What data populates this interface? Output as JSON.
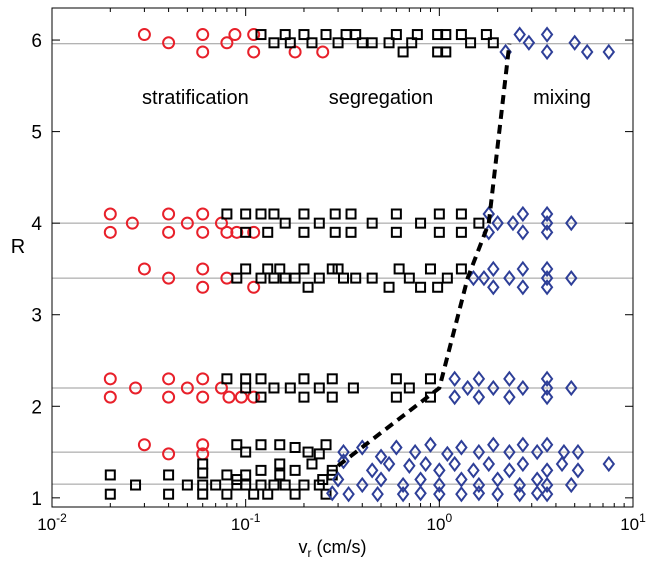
{
  "chart_data": {
    "type": "scatter",
    "xscale": "log",
    "xlim": [
      0.01,
      10
    ],
    "ylim": [
      0.9,
      6.35
    ],
    "xlabel": "v_r (cm/s)",
    "xlabel_main": "v",
    "xlabel_sub": "r",
    "xlabel_rest": " (cm/s)",
    "ylabel": "R",
    "xticks": [
      {
        "value": 0.01,
        "base": "10",
        "exp": "-2"
      },
      {
        "value": 0.1,
        "base": "10",
        "exp": "-1"
      },
      {
        "value": 1,
        "base": "10",
        "exp": "0"
      },
      {
        "value": 10,
        "base": "10",
        "exp": "1"
      }
    ],
    "yticks": [
      {
        "value": 1,
        "label": "1"
      },
      {
        "value": 2,
        "label": "2"
      },
      {
        "value": 3,
        "label": "3"
      },
      {
        "value": 4,
        "label": "4"
      },
      {
        "value": 5,
        "label": "5"
      },
      {
        "value": 6,
        "label": "6"
      }
    ],
    "reference_lines": [
      1.15,
      1.5,
      2.2,
      3.4,
      4.0,
      5.96
    ],
    "regions": [
      {
        "label": "stratification",
        "x": 0.055,
        "y": 5.3
      },
      {
        "label": "segregation",
        "x": 0.5,
        "y": 5.3
      },
      {
        "label": "mixing",
        "x": 4.3,
        "y": 5.3
      }
    ],
    "boundary": {
      "style": "dashed",
      "x": [
        0.3,
        1.0,
        1.4,
        1.8,
        2.3
      ],
      "y": [
        1.35,
        2.2,
        3.4,
        4.0,
        5.96
      ]
    },
    "colors": {
      "stratification": "#e8202a",
      "segregation": "#000000",
      "mixing": "#2e3f98"
    },
    "series": [
      {
        "marker": "circle",
        "color": "#e8202a",
        "points": [
          [
            0.03,
            6.06
          ],
          [
            0.04,
            5.97
          ],
          [
            0.06,
            6.06
          ],
          [
            0.06,
            5.87
          ],
          [
            0.08,
            5.97
          ],
          [
            0.088,
            6.06
          ],
          [
            0.11,
            6.06
          ],
          [
            0.11,
            5.87
          ],
          [
            0.18,
            5.87
          ],
          [
            0.25,
            5.87
          ],
          [
            0.02,
            4.1
          ],
          [
            0.02,
            3.9
          ],
          [
            0.026,
            4.0
          ],
          [
            0.04,
            4.1
          ],
          [
            0.04,
            3.9
          ],
          [
            0.05,
            4.0
          ],
          [
            0.06,
            4.1
          ],
          [
            0.06,
            3.9
          ],
          [
            0.075,
            4.0
          ],
          [
            0.08,
            3.9
          ],
          [
            0.09,
            3.9
          ],
          [
            0.11,
            3.9
          ],
          [
            0.03,
            3.5
          ],
          [
            0.04,
            3.4
          ],
          [
            0.06,
            3.5
          ],
          [
            0.06,
            3.3
          ],
          [
            0.08,
            3.4
          ],
          [
            0.11,
            3.3
          ],
          [
            0.02,
            2.3
          ],
          [
            0.02,
            2.1
          ],
          [
            0.027,
            2.2
          ],
          [
            0.04,
            2.3
          ],
          [
            0.04,
            2.1
          ],
          [
            0.05,
            2.2
          ],
          [
            0.06,
            2.3
          ],
          [
            0.06,
            2.1
          ],
          [
            0.075,
            2.2
          ],
          [
            0.082,
            2.1
          ],
          [
            0.095,
            2.1
          ],
          [
            0.11,
            2.1
          ],
          [
            0.03,
            1.58
          ],
          [
            0.04,
            1.48
          ],
          [
            0.06,
            1.58
          ],
          [
            0.06,
            1.48
          ]
        ]
      },
      {
        "marker": "square",
        "color": "#000000",
        "points": [
          [
            0.12,
            6.06
          ],
          [
            0.14,
            5.97
          ],
          [
            0.16,
            6.06
          ],
          [
            0.17,
            5.97
          ],
          [
            0.2,
            6.06
          ],
          [
            0.22,
            5.97
          ],
          [
            0.26,
            6.06
          ],
          [
            0.3,
            5.97
          ],
          [
            0.33,
            6.06
          ],
          [
            0.37,
            6.06
          ],
          [
            0.4,
            5.97
          ],
          [
            0.45,
            5.97
          ],
          [
            0.55,
            5.97
          ],
          [
            0.6,
            6.06
          ],
          [
            0.65,
            5.87
          ],
          [
            0.72,
            5.97
          ],
          [
            0.77,
            6.06
          ],
          [
            0.98,
            6.06
          ],
          [
            0.98,
            5.87
          ],
          [
            1.08,
            6.06
          ],
          [
            1.08,
            5.87
          ],
          [
            1.3,
            6.06
          ],
          [
            1.45,
            5.97
          ],
          [
            1.75,
            6.06
          ],
          [
            1.9,
            5.97
          ],
          [
            0.08,
            4.1
          ],
          [
            0.1,
            4.1
          ],
          [
            0.1,
            3.9
          ],
          [
            0.12,
            4.1
          ],
          [
            0.13,
            3.9
          ],
          [
            0.14,
            4.1
          ],
          [
            0.16,
            4.0
          ],
          [
            0.2,
            4.1
          ],
          [
            0.2,
            3.9
          ],
          [
            0.24,
            4.0
          ],
          [
            0.29,
            4.1
          ],
          [
            0.29,
            3.9
          ],
          [
            0.35,
            4.1
          ],
          [
            0.35,
            3.9
          ],
          [
            0.45,
            4.0
          ],
          [
            0.6,
            4.1
          ],
          [
            0.6,
            3.9
          ],
          [
            0.8,
            4.0
          ],
          [
            1.0,
            4.1
          ],
          [
            1.0,
            3.9
          ],
          [
            1.3,
            4.1
          ],
          [
            1.3,
            3.9
          ],
          [
            1.6,
            4.0
          ],
          [
            0.09,
            3.4
          ],
          [
            0.1,
            3.5
          ],
          [
            0.12,
            3.4
          ],
          [
            0.13,
            3.5
          ],
          [
            0.14,
            3.4
          ],
          [
            0.15,
            3.5
          ],
          [
            0.16,
            3.4
          ],
          [
            0.18,
            3.4
          ],
          [
            0.2,
            3.5
          ],
          [
            0.21,
            3.3
          ],
          [
            0.24,
            3.4
          ],
          [
            0.28,
            3.5
          ],
          [
            0.3,
            3.5
          ],
          [
            0.32,
            3.4
          ],
          [
            0.37,
            3.4
          ],
          [
            0.45,
            3.4
          ],
          [
            0.55,
            3.3
          ],
          [
            0.62,
            3.5
          ],
          [
            0.7,
            3.4
          ],
          [
            0.8,
            3.3
          ],
          [
            0.9,
            3.5
          ],
          [
            0.98,
            3.3
          ],
          [
            1.1,
            3.4
          ],
          [
            1.3,
            3.5
          ],
          [
            0.08,
            2.3
          ],
          [
            0.1,
            2.3
          ],
          [
            0.1,
            2.2
          ],
          [
            0.12,
            2.3
          ],
          [
            0.12,
            2.1
          ],
          [
            0.14,
            2.2
          ],
          [
            0.17,
            2.2
          ],
          [
            0.2,
            2.3
          ],
          [
            0.2,
            2.1
          ],
          [
            0.24,
            2.2
          ],
          [
            0.28,
            2.3
          ],
          [
            0.28,
            2.1
          ],
          [
            0.36,
            2.2
          ],
          [
            0.6,
            2.3
          ],
          [
            0.6,
            2.1
          ],
          [
            0.7,
            2.2
          ],
          [
            0.9,
            2.3
          ],
          [
            0.9,
            2.1
          ],
          [
            0.09,
            1.58
          ],
          [
            0.1,
            1.5
          ],
          [
            0.12,
            1.58
          ],
          [
            0.15,
            1.58
          ],
          [
            0.18,
            1.55
          ],
          [
            0.21,
            1.5
          ],
          [
            0.24,
            1.48
          ],
          [
            0.26,
            1.58
          ],
          [
            0.06,
            1.37
          ],
          [
            0.06,
            1.27
          ],
          [
            0.09,
            1.2
          ],
          [
            0.12,
            1.3
          ],
          [
            0.15,
            1.37
          ],
          [
            0.18,
            1.3
          ],
          [
            0.22,
            1.37
          ],
          [
            0.25,
            1.2
          ],
          [
            0.28,
            1.3
          ],
          [
            0.02,
            1.25
          ],
          [
            0.02,
            1.04
          ],
          [
            0.027,
            1.14
          ],
          [
            0.04,
            1.25
          ],
          [
            0.04,
            1.04
          ],
          [
            0.05,
            1.14
          ],
          [
            0.06,
            1.14
          ],
          [
            0.06,
            1.04
          ],
          [
            0.07,
            1.14
          ],
          [
            0.08,
            1.25
          ],
          [
            0.08,
            1.04
          ],
          [
            0.09,
            1.14
          ],
          [
            0.1,
            1.25
          ],
          [
            0.1,
            1.14
          ],
          [
            0.11,
            1.04
          ],
          [
            0.12,
            1.14
          ],
          [
            0.13,
            1.04
          ],
          [
            0.14,
            1.14
          ],
          [
            0.15,
            1.25
          ],
          [
            0.16,
            1.14
          ],
          [
            0.18,
            1.04
          ],
          [
            0.2,
            1.14
          ],
          [
            0.24,
            1.14
          ],
          [
            0.26,
            1.04
          ],
          [
            0.28,
            1.25
          ]
        ]
      },
      {
        "marker": "diamond",
        "color": "#2e3f98",
        "points": [
          [
            2.2,
            5.87
          ],
          [
            2.6,
            6.06
          ],
          [
            2.9,
            5.97
          ],
          [
            3.6,
            6.06
          ],
          [
            3.6,
            5.87
          ],
          [
            5.0,
            5.97
          ],
          [
            5.8,
            5.87
          ],
          [
            7.5,
            5.87
          ],
          [
            1.8,
            4.1
          ],
          [
            1.8,
            3.9
          ],
          [
            2.0,
            4.0
          ],
          [
            2.4,
            4.0
          ],
          [
            2.7,
            4.1
          ],
          [
            2.7,
            3.9
          ],
          [
            3.6,
            4.1
          ],
          [
            3.6,
            3.9
          ],
          [
            3.6,
            4.0
          ],
          [
            4.8,
            4.0
          ],
          [
            1.5,
            3.4
          ],
          [
            1.7,
            3.4
          ],
          [
            1.9,
            3.5
          ],
          [
            1.9,
            3.3
          ],
          [
            2.3,
            3.4
          ],
          [
            2.7,
            3.5
          ],
          [
            2.7,
            3.3
          ],
          [
            3.6,
            3.5
          ],
          [
            3.6,
            3.3
          ],
          [
            3.6,
            3.4
          ],
          [
            4.8,
            3.4
          ],
          [
            1.2,
            2.3
          ],
          [
            1.2,
            2.1
          ],
          [
            1.4,
            2.2
          ],
          [
            1.6,
            2.3
          ],
          [
            1.6,
            2.1
          ],
          [
            1.9,
            2.2
          ],
          [
            2.3,
            2.3
          ],
          [
            2.3,
            2.1
          ],
          [
            2.7,
            2.2
          ],
          [
            3.6,
            2.3
          ],
          [
            3.6,
            2.1
          ],
          [
            3.6,
            2.2
          ],
          [
            4.8,
            2.2
          ],
          [
            0.32,
            1.5
          ],
          [
            0.4,
            1.55
          ],
          [
            0.5,
            1.45
          ],
          [
            0.6,
            1.55
          ],
          [
            0.75,
            1.5
          ],
          [
            0.9,
            1.58
          ],
          [
            1.1,
            1.48
          ],
          [
            1.3,
            1.55
          ],
          [
            1.6,
            1.5
          ],
          [
            1.9,
            1.58
          ],
          [
            2.3,
            1.5
          ],
          [
            2.7,
            1.58
          ],
          [
            3.2,
            1.5
          ],
          [
            3.6,
            1.58
          ],
          [
            4.4,
            1.5
          ],
          [
            5.2,
            1.5
          ],
          [
            0.32,
            1.4
          ],
          [
            0.45,
            1.3
          ],
          [
            0.55,
            1.37
          ],
          [
            0.7,
            1.35
          ],
          [
            0.85,
            1.37
          ],
          [
            1.0,
            1.3
          ],
          [
            1.2,
            1.37
          ],
          [
            1.5,
            1.3
          ],
          [
            1.8,
            1.37
          ],
          [
            2.3,
            1.3
          ],
          [
            2.7,
            1.37
          ],
          [
            3.6,
            1.3
          ],
          [
            4.3,
            1.37
          ],
          [
            5.2,
            1.3
          ],
          [
            7.5,
            1.37
          ],
          [
            0.3,
            1.2
          ],
          [
            0.4,
            1.14
          ],
          [
            0.5,
            1.2
          ],
          [
            0.65,
            1.14
          ],
          [
            0.8,
            1.2
          ],
          [
            1.0,
            1.14
          ],
          [
            1.3,
            1.2
          ],
          [
            1.6,
            1.14
          ],
          [
            2.0,
            1.2
          ],
          [
            2.6,
            1.14
          ],
          [
            3.2,
            1.2
          ],
          [
            3.6,
            1.14
          ],
          [
            4.8,
            1.14
          ],
          [
            0.28,
            1.05
          ],
          [
            0.34,
            1.04
          ],
          [
            0.48,
            1.04
          ],
          [
            0.65,
            1.04
          ],
          [
            0.8,
            1.05
          ],
          [
            1.0,
            1.04
          ],
          [
            1.3,
            1.04
          ],
          [
            1.6,
            1.05
          ],
          [
            2.0,
            1.04
          ],
          [
            2.6,
            1.04
          ],
          [
            3.2,
            1.05
          ],
          [
            3.6,
            1.04
          ]
        ]
      }
    ]
  }
}
